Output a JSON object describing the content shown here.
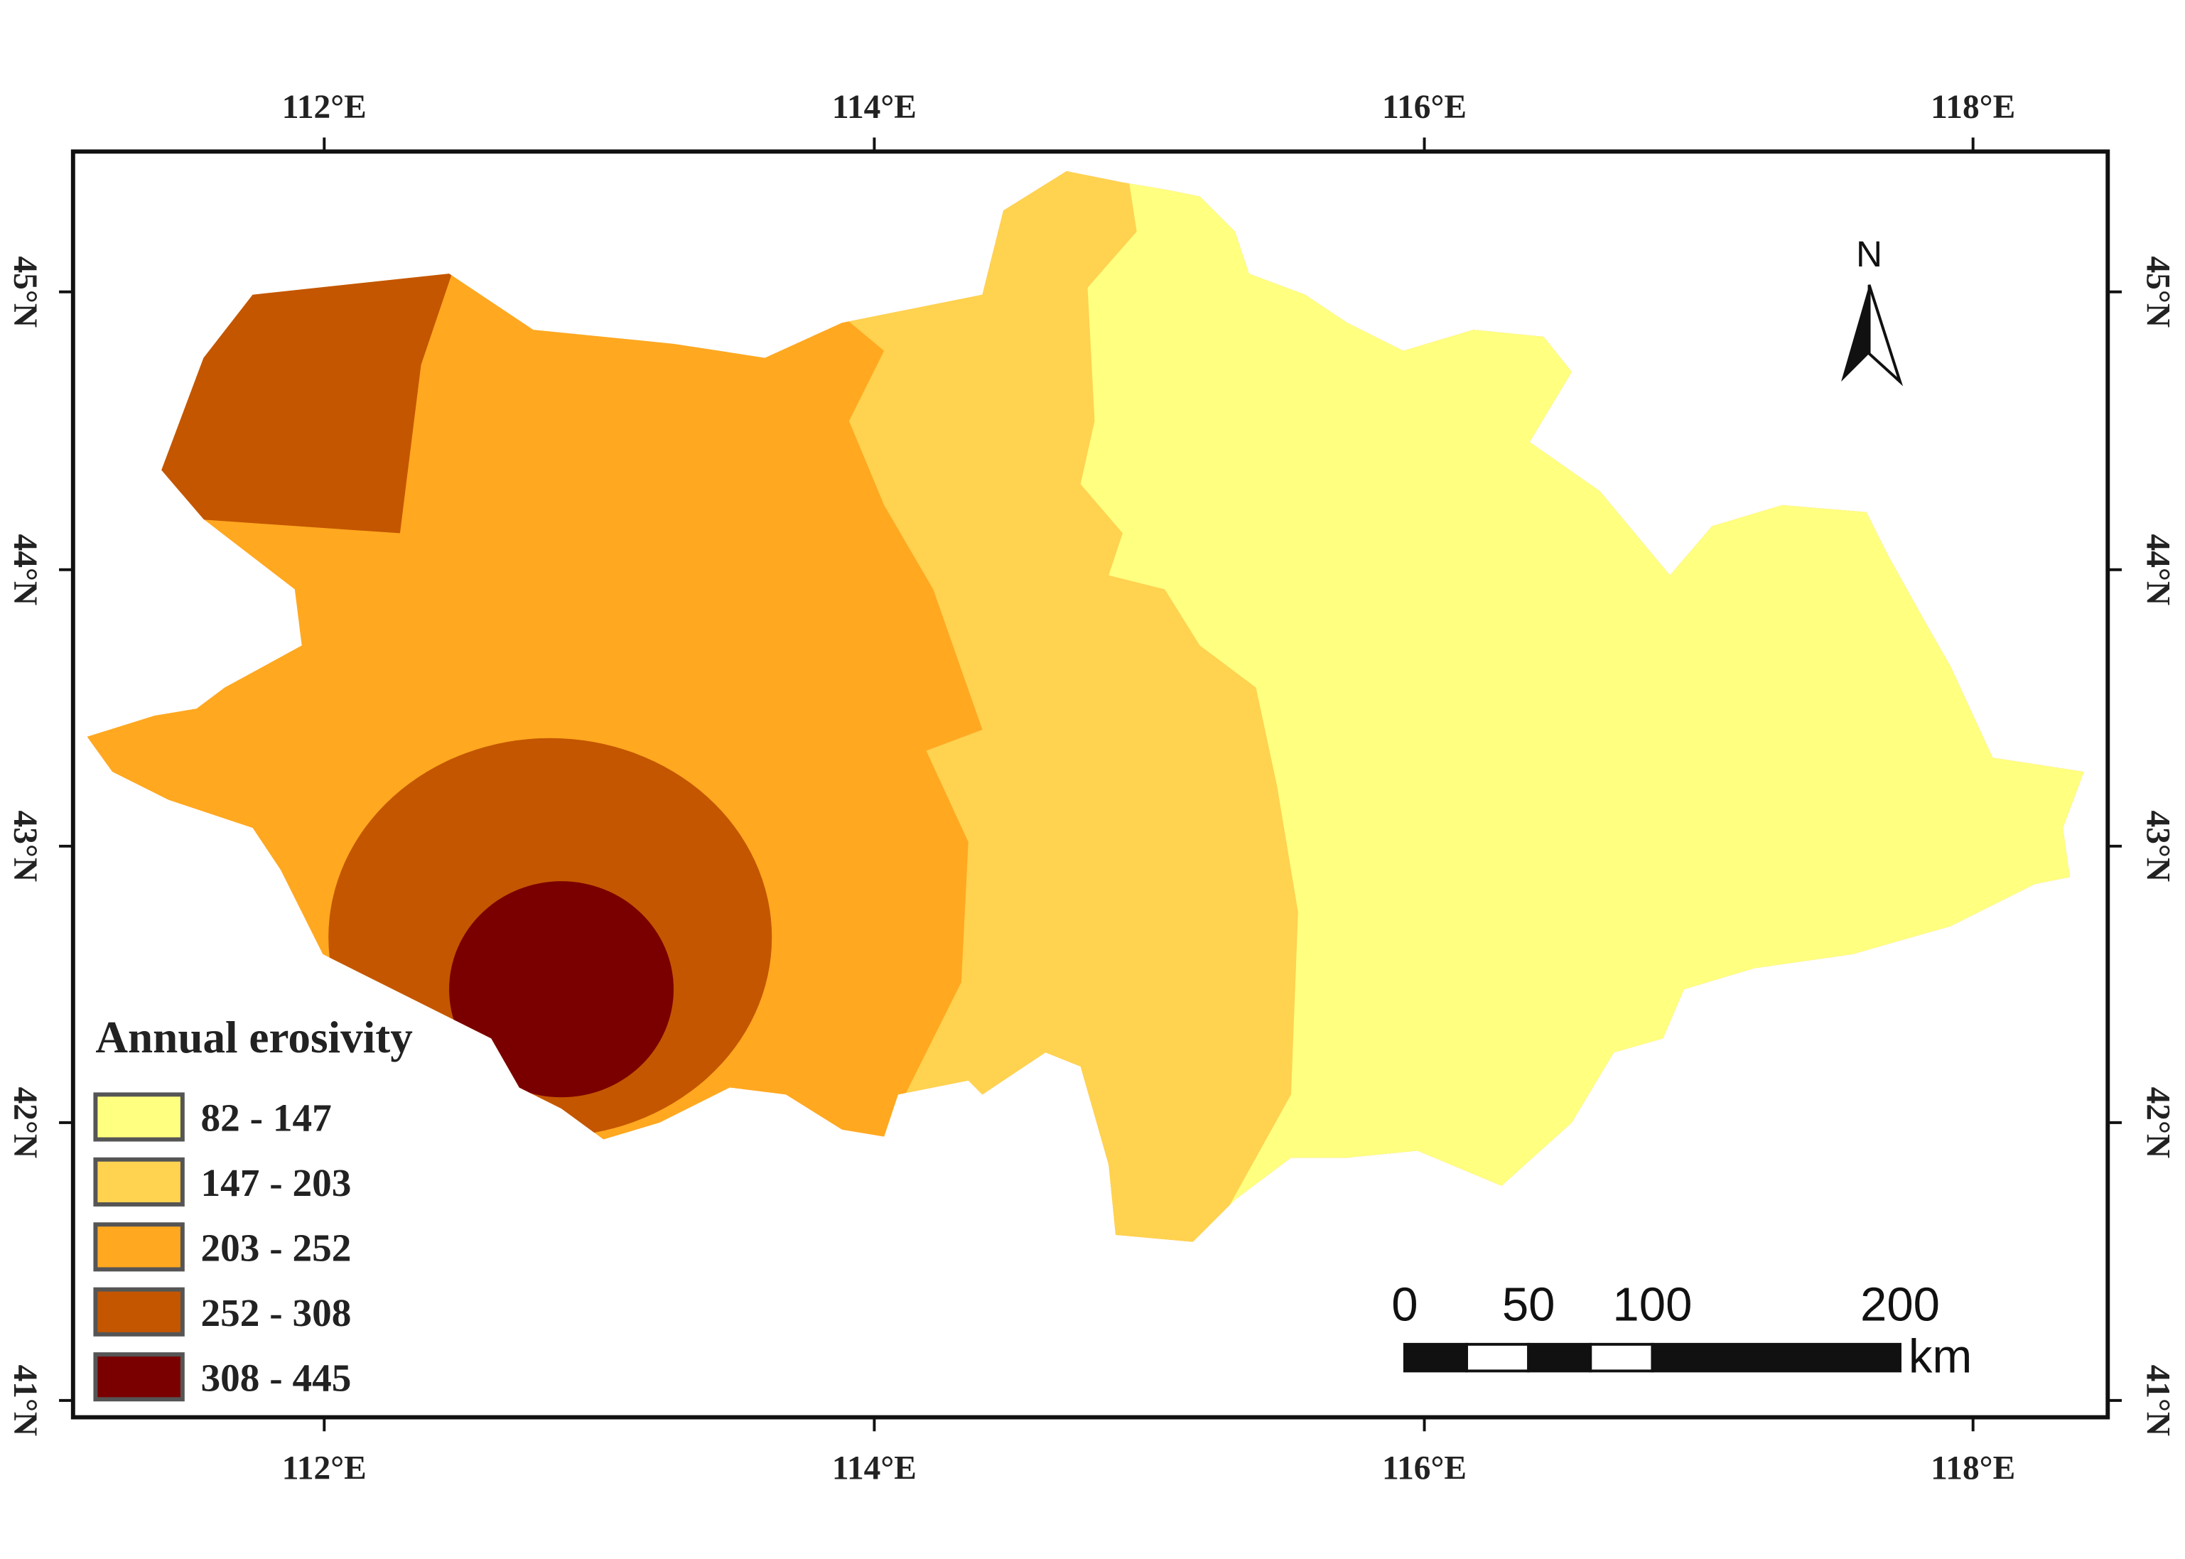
{
  "map": {
    "x_ticks": [
      "112°E",
      "114°E",
      "116°E",
      "118°E"
    ],
    "y_ticks": [
      "45°N",
      "44°N",
      "43°N",
      "42°N",
      "41°N"
    ],
    "north": "N",
    "legend": {
      "title": "Annual erosivity",
      "items": [
        {
          "label": "82 - 147",
          "color": "#ffff80"
        },
        {
          "label": "147 - 203",
          "color": "#ffd250"
        },
        {
          "label": "203 - 252",
          "color": "#ffa820"
        },
        {
          "label": "252 - 308",
          "color": "#c45600"
        },
        {
          "label": "308 - 445",
          "color": "#7a0000"
        }
      ]
    },
    "scale_bar": {
      "ticks": [
        0,
        50,
        100,
        200
      ],
      "unit": "km"
    }
  }
}
